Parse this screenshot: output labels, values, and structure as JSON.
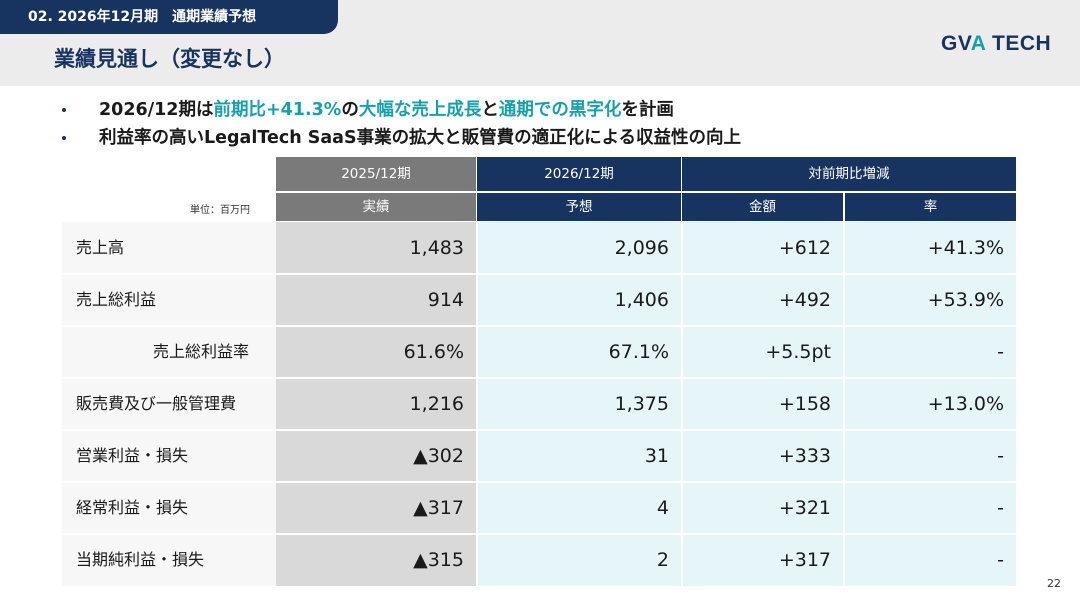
{
  "header": {
    "section_tab": "02. 2026年12月期　通期業績予想",
    "page_title": "業績見通し（変更なし）",
    "logo_main": "GV",
    "logo_accent": "A",
    "logo_rest": " TECH"
  },
  "bullets": [
    {
      "p1": "2026/12期は",
      "h1": "前期比+41.3%",
      "p2": "の",
      "h2": "大幅な売上成長",
      "p3": "と",
      "h3": "通期での黒字化",
      "p4": "を計画"
    },
    {
      "text": "利益率の高いLegalTech SaaS事業の拡大と販管費の適正化による収益性の向上"
    }
  ],
  "table": {
    "unit_label": "単位：百万円",
    "header_top": [
      "2025/12期",
      "2026/12期",
      "対前期比増減"
    ],
    "header_sub": [
      "実績",
      "予想",
      "金額",
      "率"
    ],
    "rows": [
      {
        "label": "売上高",
        "actual": "1,483",
        "forecast": "2,096",
        "diff": "+612",
        "rate": "+41.3%"
      },
      {
        "label": "売上総利益",
        "actual": "914",
        "forecast": "1,406",
        "diff": "+492",
        "rate": "+53.9%"
      },
      {
        "label": "売上総利益率",
        "actual": "61.6%",
        "forecast": "67.1%",
        "diff": "+5.5pt",
        "rate": "-"
      },
      {
        "label": "販売費及び一般管理費",
        "actual": "1,216",
        "forecast": "1,375",
        "diff": "+158",
        "rate": "+13.0%"
      },
      {
        "label": "営業利益・損失",
        "actual": "▲302",
        "forecast": "31",
        "diff": "+333",
        "rate": "-"
      },
      {
        "label": "経常利益・損失",
        "actual": "▲317",
        "forecast": "4",
        "diff": "+321",
        "rate": "-"
      },
      {
        "label": "当期純利益・損失",
        "actual": "▲315",
        "forecast": "2",
        "diff": "+317",
        "rate": "-"
      }
    ]
  },
  "page_number": "22",
  "colors": {
    "navy": "#17335f",
    "teal": "#17a0a8",
    "gray_header": "#7a7a7a",
    "gray_cell": "#d9d9d9",
    "light_cell": "#e6f5f8"
  }
}
